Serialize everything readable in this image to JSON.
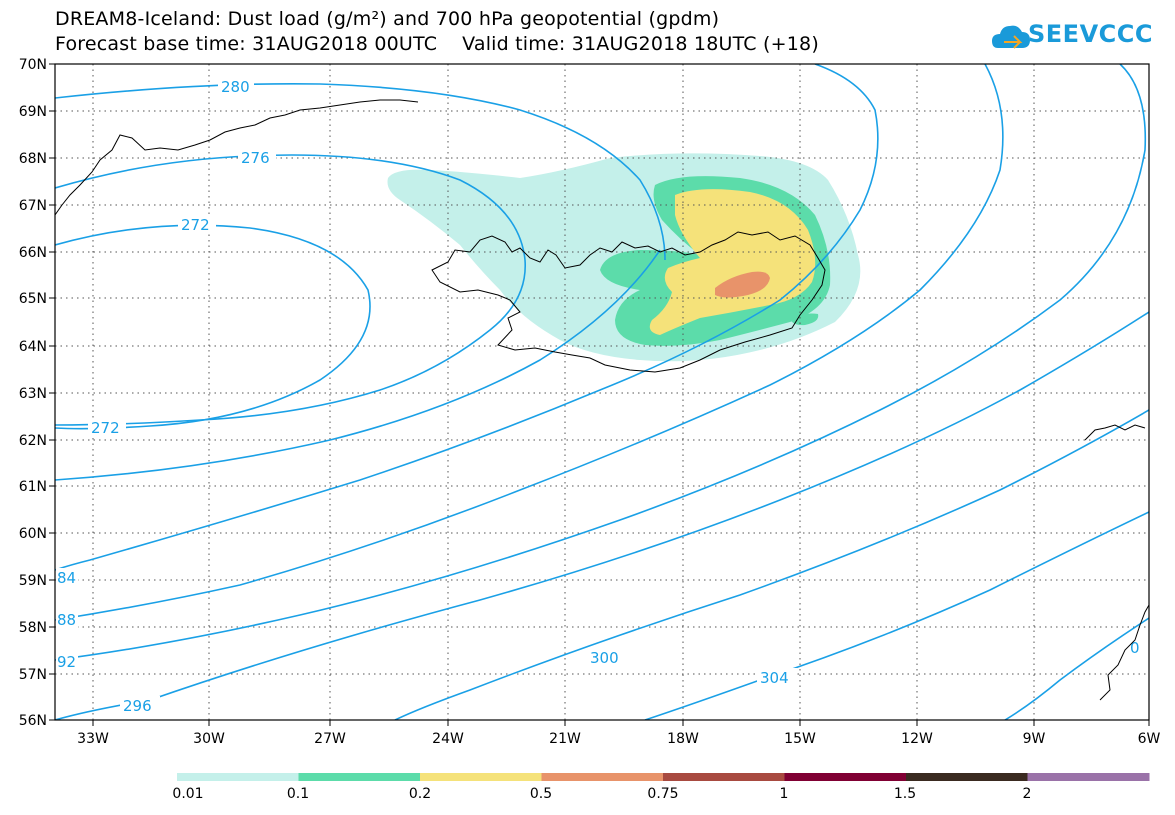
{
  "header": {
    "title_line1": "DREAM8-Iceland: Dust load (g/m²) and 700 hPa geopotential (gpdm)",
    "title_line2": "Forecast base time: 31AUG2018 00UTC    Valid time: 31AUG2018 18UTC (+18)"
  },
  "logo": {
    "text": "SEEVCCC",
    "icon": "cloud-icon",
    "color": "#1a9ad9"
  },
  "map": {
    "lat_labels": [
      "70N",
      "69N",
      "68N",
      "67N",
      "66N",
      "65N",
      "64N",
      "63N",
      "62N",
      "61N",
      "60N",
      "59N",
      "58N",
      "57N",
      "56N"
    ],
    "lon_labels": [
      "33W",
      "30W",
      "27W",
      "24W",
      "21W",
      "18W",
      "15W",
      "12W",
      "9W",
      "6W"
    ],
    "lat_range": [
      56,
      70
    ],
    "lon_range": [
      -34.3,
      -6
    ],
    "grid": "dotted",
    "contour_color": "#1aa0e6",
    "contour_labels": [
      "280",
      "276",
      "272",
      "272",
      "84",
      "88",
      "92",
      "296",
      "300",
      "304",
      "0"
    ]
  },
  "legend": {
    "ticks": [
      "0.01",
      "0.1",
      "0.2",
      "0.5",
      "0.75",
      "1",
      "1.5",
      "2"
    ],
    "colors": [
      "#c4f0ea",
      "#5cdcaa",
      "#f5e27a",
      "#e8936a",
      "#a84a40",
      "#800033",
      "#3a2a20",
      "#9a72a8"
    ]
  }
}
